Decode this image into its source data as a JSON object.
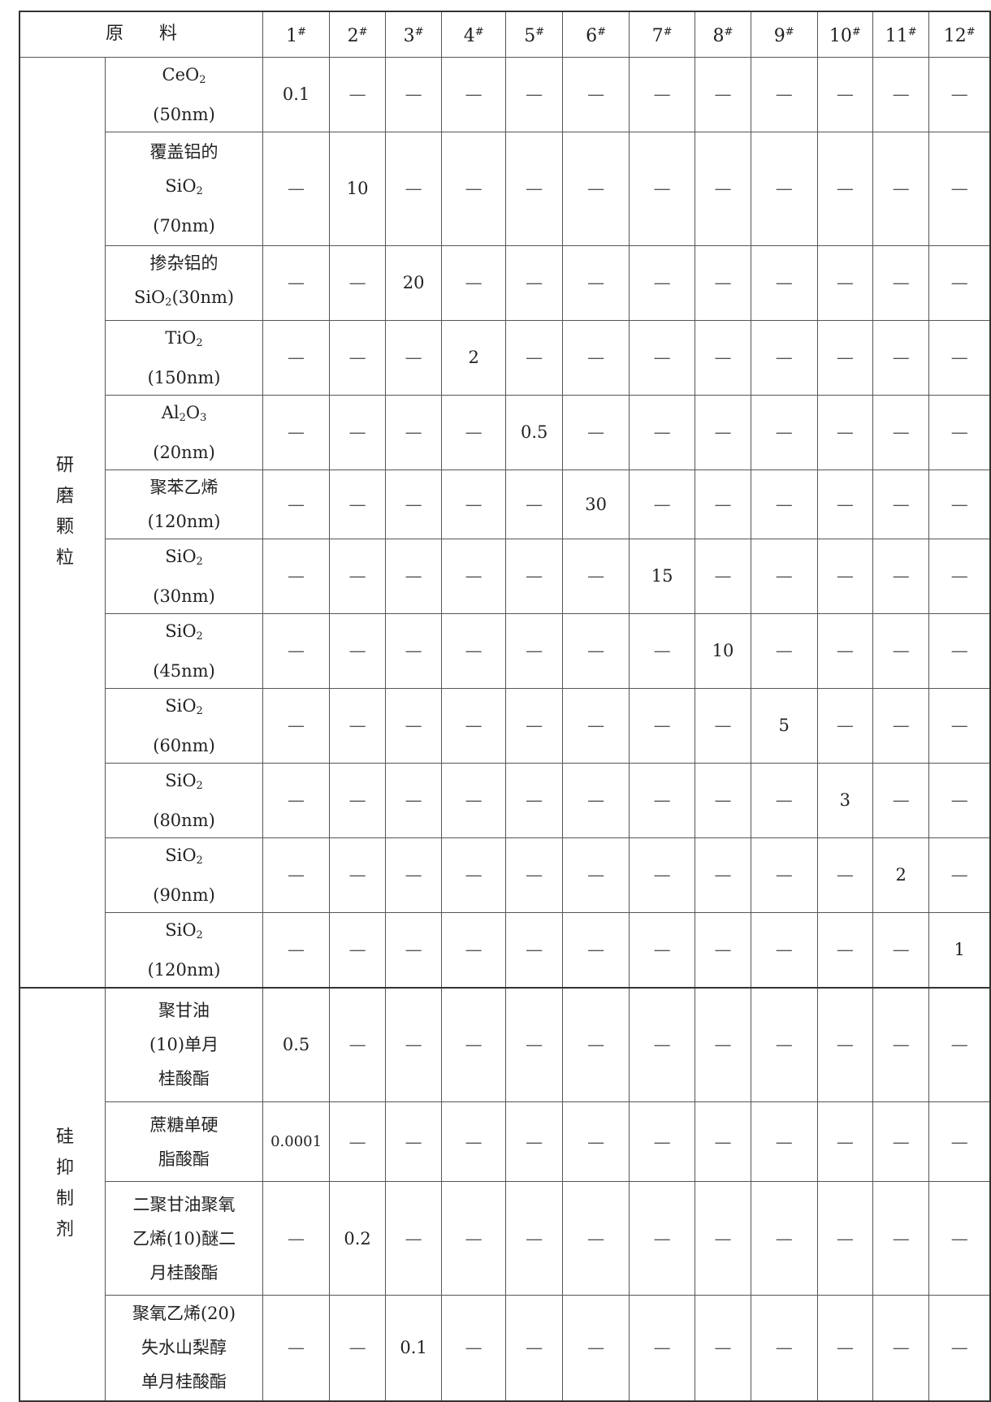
{
  "header": {
    "material_label": "原　　料",
    "columns": [
      "1",
      "2",
      "3",
      "4",
      "5",
      "6",
      "7",
      "8",
      "9",
      "10",
      "11",
      "12"
    ],
    "column_mark": "#"
  },
  "groups": [
    {
      "name": "研磨颗粒",
      "rows": [
        {
          "label": [
            [
              {
                "t": "CeO"
              },
              {
                "sub": "2"
              }
            ],
            [
              {
                "t": "(50nm)"
              }
            ]
          ],
          "values": [
            "0.1",
            "—",
            "—",
            "—",
            "—",
            "—",
            "—",
            "—",
            "—",
            "—",
            "—",
            "—"
          ]
        },
        {
          "label": [
            [
              {
                "t": "覆盖铝的"
              }
            ],
            [
              {
                "t": "SiO"
              },
              {
                "sub": "2"
              }
            ],
            [
              {
                "t": "(70nm)"
              }
            ]
          ],
          "values": [
            "—",
            "10",
            "—",
            "—",
            "—",
            "—",
            "—",
            "—",
            "—",
            "—",
            "—",
            "—"
          ]
        },
        {
          "label": [
            [
              {
                "t": "掺杂铝的"
              }
            ],
            [
              {
                "t": "SiO"
              },
              {
                "sub": "2"
              },
              {
                "t": "(30nm)"
              }
            ]
          ],
          "values": [
            "—",
            "—",
            "20",
            "—",
            "—",
            "—",
            "—",
            "—",
            "—",
            "—",
            "—",
            "—"
          ]
        },
        {
          "label": [
            [
              {
                "t": "TiO"
              },
              {
                "sub": "2"
              }
            ],
            [
              {
                "t": "(150nm)"
              }
            ]
          ],
          "values": [
            "—",
            "—",
            "—",
            "2",
            "—",
            "—",
            "—",
            "—",
            "—",
            "—",
            "—",
            "—"
          ]
        },
        {
          "label": [
            [
              {
                "t": "Al"
              },
              {
                "sub": "2"
              },
              {
                "t": "O"
              },
              {
                "sub": "3"
              }
            ],
            [
              {
                "t": "(20nm)"
              }
            ]
          ],
          "values": [
            "—",
            "—",
            "—",
            "—",
            "0.5",
            "—",
            "—",
            "—",
            "—",
            "—",
            "—",
            "—"
          ]
        },
        {
          "label": [
            [
              {
                "t": "聚苯乙烯"
              }
            ],
            [
              {
                "t": "(120nm)"
              }
            ]
          ],
          "values": [
            "—",
            "—",
            "—",
            "—",
            "—",
            "30",
            "—",
            "—",
            "—",
            "—",
            "—",
            "—"
          ]
        },
        {
          "label": [
            [
              {
                "t": "SiO"
              },
              {
                "sub": "2"
              }
            ],
            [
              {
                "t": "(30nm)"
              }
            ]
          ],
          "values": [
            "—",
            "—",
            "—",
            "—",
            "—",
            "—",
            "15",
            "—",
            "—",
            "—",
            "—",
            "—"
          ]
        },
        {
          "label": [
            [
              {
                "t": "SiO"
              },
              {
                "sub": "2"
              }
            ],
            [
              {
                "t": "(45nm)"
              }
            ]
          ],
          "values": [
            "—",
            "—",
            "—",
            "—",
            "—",
            "—",
            "—",
            "10",
            "—",
            "—",
            "—",
            "—"
          ]
        },
        {
          "label": [
            [
              {
                "t": "SiO"
              },
              {
                "sub": "2"
              }
            ],
            [
              {
                "t": "(60nm)"
              }
            ]
          ],
          "values": [
            "—",
            "—",
            "—",
            "—",
            "—",
            "—",
            "—",
            "—",
            "5",
            "—",
            "—",
            "—"
          ]
        },
        {
          "label": [
            [
              {
                "t": "SiO"
              },
              {
                "sub": "2"
              }
            ],
            [
              {
                "t": "(80nm)"
              }
            ]
          ],
          "values": [
            "—",
            "—",
            "—",
            "—",
            "—",
            "—",
            "—",
            "—",
            "—",
            "3",
            "—",
            "—"
          ]
        },
        {
          "label": [
            [
              {
                "t": "SiO"
              },
              {
                "sub": "2"
              }
            ],
            [
              {
                "t": "(90nm)"
              }
            ]
          ],
          "values": [
            "—",
            "—",
            "—",
            "—",
            "—",
            "—",
            "—",
            "—",
            "—",
            "—",
            "2",
            "—"
          ]
        },
        {
          "label": [
            [
              {
                "t": "SiO"
              },
              {
                "sub": "2"
              }
            ],
            [
              {
                "t": "(120nm)"
              }
            ]
          ],
          "values": [
            "—",
            "—",
            "—",
            "—",
            "—",
            "—",
            "—",
            "—",
            "—",
            "—",
            "—",
            "1"
          ]
        }
      ]
    },
    {
      "name": "硅抑制剂",
      "rows": [
        {
          "label": [
            [
              {
                "t": "聚甘油"
              }
            ],
            [
              {
                "t": "(10)单月"
              }
            ],
            [
              {
                "t": "桂酸酯"
              }
            ]
          ],
          "values": [
            "0.5",
            "—",
            "—",
            "—",
            "—",
            "—",
            "—",
            "—",
            "—",
            "—",
            "—",
            "—"
          ]
        },
        {
          "label": [
            [
              {
                "t": "蔗糖单硬"
              }
            ],
            [
              {
                "t": "脂酸酯"
              }
            ]
          ],
          "values": [
            "0.0001",
            "—",
            "—",
            "—",
            "—",
            "—",
            "—",
            "—",
            "—",
            "—",
            "—",
            "—"
          ]
        },
        {
          "label": [
            [
              {
                "t": "二聚甘油聚氧"
              }
            ],
            [
              {
                "t": "乙烯(10)醚二"
              }
            ],
            [
              {
                "t": "月桂酸酯"
              }
            ]
          ],
          "values": [
            "—",
            "0.2",
            "—",
            "—",
            "—",
            "—",
            "—",
            "—",
            "—",
            "—",
            "—",
            "—"
          ]
        },
        {
          "label": [
            [
              {
                "t": "聚氧乙烯(20)"
              }
            ],
            [
              {
                "t": "失水山梨醇"
              }
            ],
            [
              {
                "t": "单月桂酸酯"
              }
            ]
          ],
          "values": [
            "—",
            "—",
            "0.1",
            "—",
            "—",
            "—",
            "—",
            "—",
            "—",
            "—",
            "—",
            "—"
          ]
        }
      ]
    }
  ]
}
